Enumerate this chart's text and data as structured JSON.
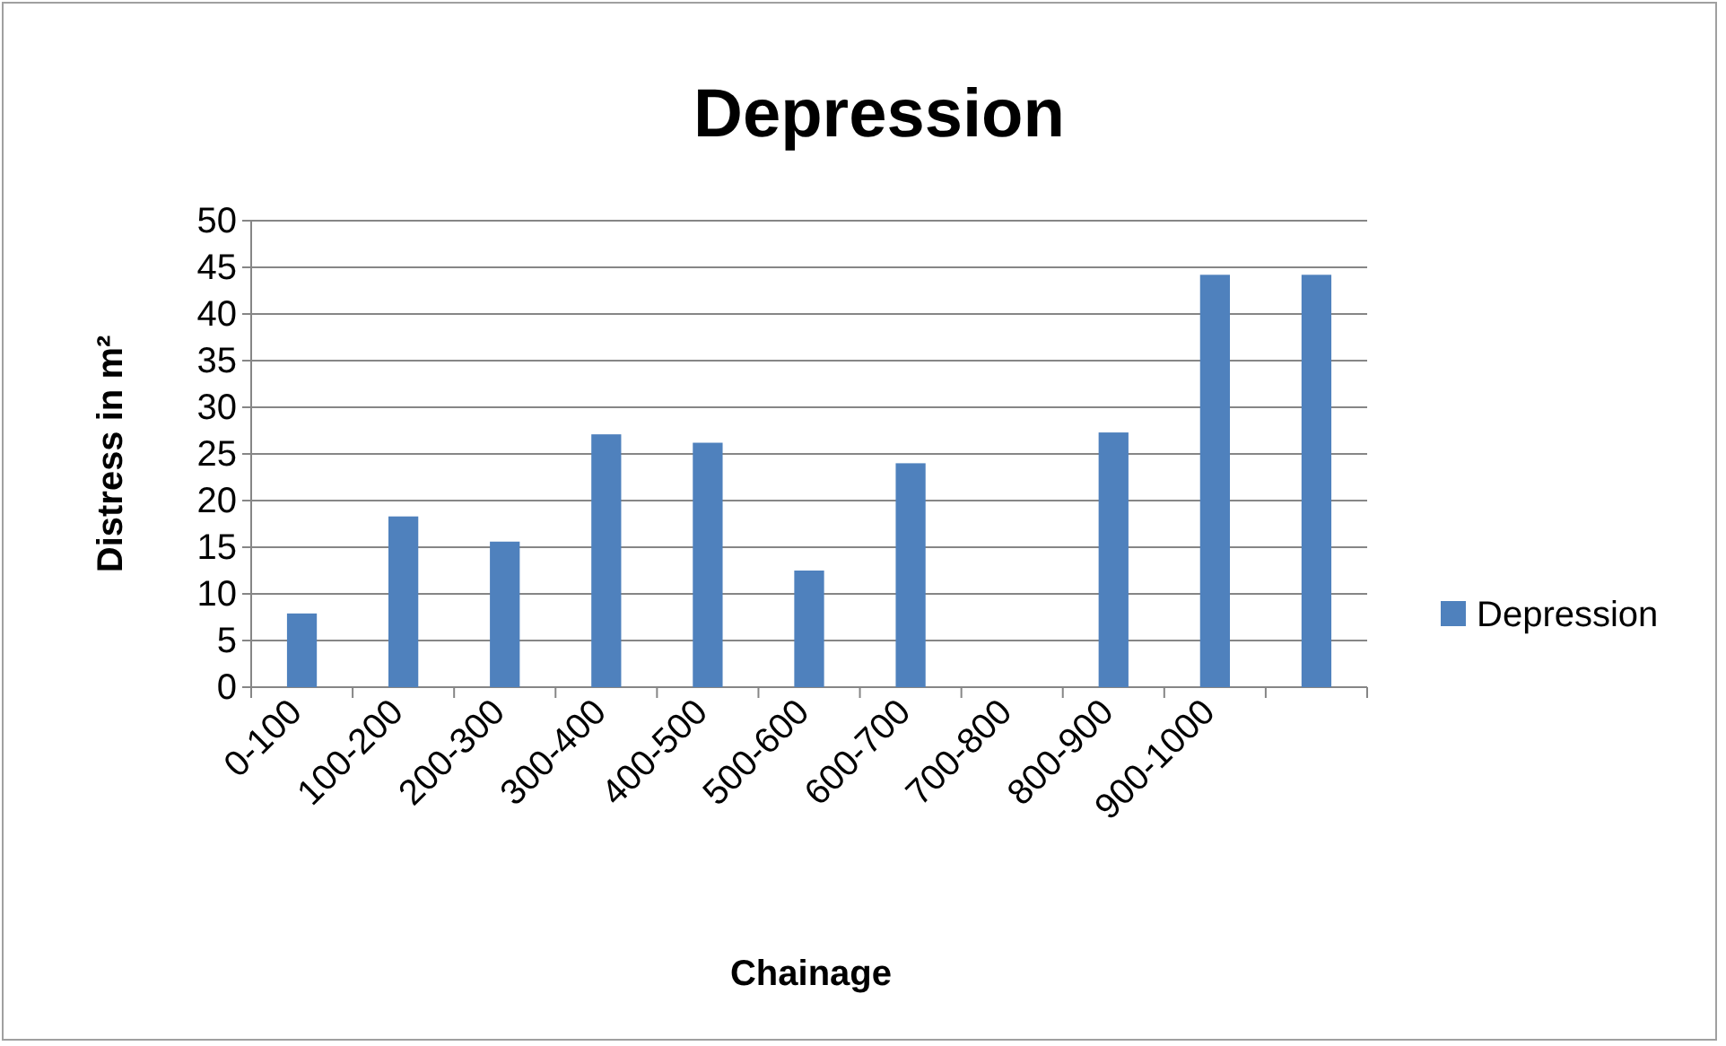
{
  "chart_data": {
    "type": "bar",
    "title": "Depression",
    "xlabel": "Chainage",
    "ylabel": "Distress in m²",
    "categories": [
      "0-100",
      "100-200",
      "200-300",
      "300-400",
      "400-500",
      "500-600",
      "600-700",
      "700-800",
      "800-900",
      "900-1000",
      null
    ],
    "series": [
      {
        "name": "Depression",
        "color": "#4f81bd",
        "values": [
          7.9,
          18.3,
          15.6,
          27.1,
          26.2,
          12.5,
          24,
          0,
          27.3,
          44.2,
          44.2
        ]
      }
    ],
    "ylim": [
      0,
      50
    ],
    "yticks": [
      0,
      5,
      10,
      15,
      20,
      25,
      30,
      35,
      40,
      45,
      50
    ],
    "grid": "y",
    "legend": "right"
  }
}
